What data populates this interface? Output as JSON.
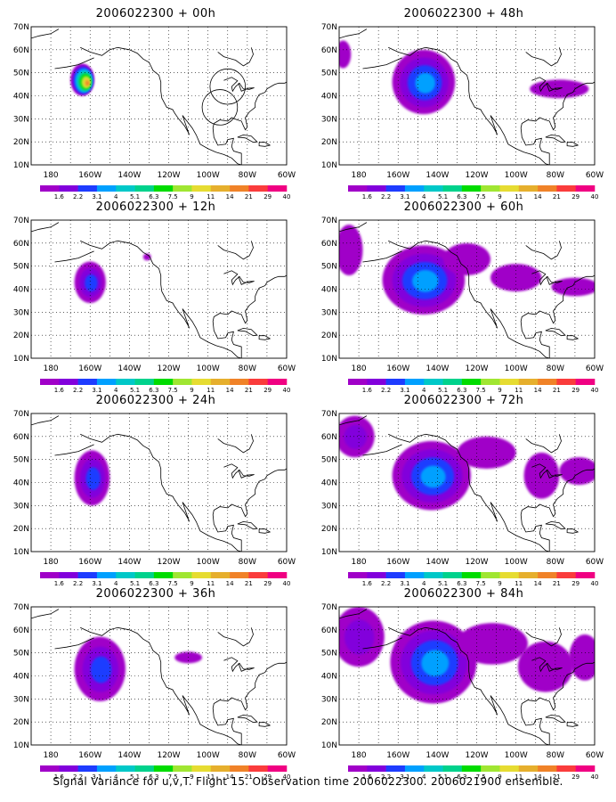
{
  "figure": {
    "caption": "Signal Variance for u,v,T. Flight 15. Observation time 2006022300. 2006021900 ensemble."
  },
  "map_axes": {
    "lat_labels": [
      "70N",
      "60N",
      "50N",
      "40N",
      "30N",
      "20N",
      "10N"
    ],
    "lon_labels": [
      "180",
      "160W",
      "140W",
      "120W",
      "100W",
      "80W",
      "60W"
    ],
    "lat_range_deg": [
      10,
      70
    ],
    "lon_range_deg": [
      -190,
      -60
    ],
    "grid": "dotted, 10 degree"
  },
  "colorbar": {
    "labels": [
      "1.6",
      "2.2",
      "3.1",
      "4",
      "5.1",
      "6.3",
      "7.5",
      "9",
      "11",
      "14",
      "21",
      "29",
      "40"
    ],
    "colors": [
      "#a000c8",
      "#8200dc",
      "#1e3cff",
      "#00a0ff",
      "#00c8c8",
      "#00d28c",
      "#00dc00",
      "#a0e632",
      "#e6dc32",
      "#e6af2d",
      "#f08228",
      "#fa3c3c",
      "#f00082"
    ]
  },
  "panels": [
    {
      "id": "00h",
      "title_date": "2006022300",
      "title_sep": "+",
      "title_lead": "00h",
      "blobs": [
        {
          "lon": -164,
          "lat": 47,
          "rx": 6,
          "ry": 7,
          "level": 11
        }
      ],
      "circles": [
        {
          "lon": -90,
          "lat": 44,
          "r": 9
        },
        {
          "lon": -94,
          "lat": 35,
          "r": 9
        }
      ]
    },
    {
      "id": "48h",
      "title_date": "2006022300",
      "title_sep": "+",
      "title_lead": "48h",
      "blobs": [
        {
          "lon": -147,
          "lat": 46,
          "rx": 16,
          "ry": 14,
          "level": 4
        },
        {
          "lon": -78,
          "lat": 43,
          "rx": 15,
          "ry": 4,
          "level": 1
        },
        {
          "lon": -188,
          "lat": 58,
          "rx": 4,
          "ry": 6,
          "level": 1
        }
      ],
      "circles": []
    },
    {
      "id": "12h",
      "title_date": "2006022300",
      "title_sep": "+",
      "title_lead": "12h",
      "blobs": [
        {
          "lon": -160,
          "lat": 43,
          "rx": 8,
          "ry": 9,
          "level": 3
        },
        {
          "lon": -131,
          "lat": 54,
          "rx": 2,
          "ry": 1.5,
          "level": 1
        }
      ],
      "circles": []
    },
    {
      "id": "60h",
      "title_date": "2006022300",
      "title_sep": "+",
      "title_lead": "60h",
      "blobs": [
        {
          "lon": -147,
          "lat": 44,
          "rx": 21,
          "ry": 15,
          "level": 4
        },
        {
          "lon": -125,
          "lat": 53,
          "rx": 12,
          "ry": 7,
          "level": 1
        },
        {
          "lon": -100,
          "lat": 45,
          "rx": 13,
          "ry": 6,
          "level": 1
        },
        {
          "lon": -70,
          "lat": 41,
          "rx": 12,
          "ry": 4,
          "level": 1
        },
        {
          "lon": -185,
          "lat": 57,
          "rx": 7,
          "ry": 11,
          "level": 1
        }
      ],
      "circles": []
    },
    {
      "id": "24h",
      "title_date": "2006022300",
      "title_sep": "+",
      "title_lead": "24h",
      "blobs": [
        {
          "lon": -159,
          "lat": 42,
          "rx": 9,
          "ry": 12,
          "level": 3
        }
      ],
      "circles": []
    },
    {
      "id": "72h",
      "title_date": "2006022300",
      "title_sep": "+",
      "title_lead": "72h",
      "blobs": [
        {
          "lon": -143,
          "lat": 43,
          "rx": 20,
          "ry": 15,
          "level": 4
        },
        {
          "lon": -182,
          "lat": 60,
          "rx": 10,
          "ry": 9,
          "level": 2
        },
        {
          "lon": -115,
          "lat": 53,
          "rx": 15,
          "ry": 7,
          "level": 1
        },
        {
          "lon": -87,
          "lat": 43,
          "rx": 9,
          "ry": 10,
          "level": 1
        },
        {
          "lon": -68,
          "lat": 45,
          "rx": 10,
          "ry": 6,
          "level": 1
        }
      ],
      "circles": []
    },
    {
      "id": "36h",
      "title_date": "2006022300",
      "title_sep": "+",
      "title_lead": "36h",
      "blobs": [
        {
          "lon": -155,
          "lat": 43,
          "rx": 13,
          "ry": 14,
          "level": 3
        },
        {
          "lon": -110,
          "lat": 48,
          "rx": 7,
          "ry": 2.5,
          "level": 1
        }
      ],
      "circles": []
    },
    {
      "id": "84h",
      "title_date": "2006022300",
      "title_sep": "+",
      "title_lead": "84h",
      "blobs": [
        {
          "lon": -142,
          "lat": 46,
          "rx": 22,
          "ry": 18,
          "level": 4
        },
        {
          "lon": -180,
          "lat": 57,
          "rx": 13,
          "ry": 13,
          "level": 2
        },
        {
          "lon": -112,
          "lat": 54,
          "rx": 18,
          "ry": 9,
          "level": 1
        },
        {
          "lon": -85,
          "lat": 44,
          "rx": 14,
          "ry": 11,
          "level": 1
        },
        {
          "lon": -65,
          "lat": 48,
          "rx": 8,
          "ry": 10,
          "level": 1
        }
      ],
      "circles": []
    }
  ]
}
